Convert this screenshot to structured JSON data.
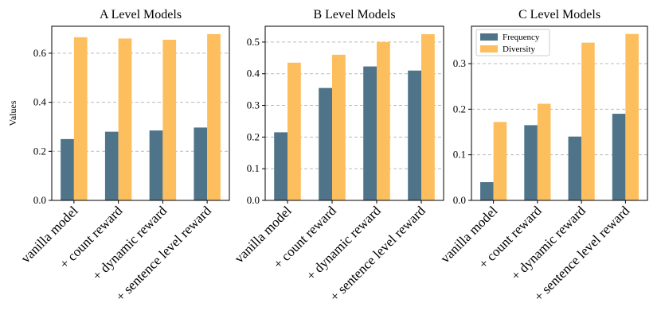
{
  "chart_data": [
    {
      "type": "bar",
      "title": "A Level Models",
      "ylabel": "Values",
      "categories": [
        "vanilla model",
        "+ count reward",
        "+ dynamic reward",
        "+ sentence level reward"
      ],
      "series": [
        {
          "color": "#4f7489",
          "values": [
            0.25,
            0.28,
            0.285,
            0.297
          ]
        },
        {
          "color": "#fdbf5e",
          "values": [
            0.665,
            0.66,
            0.655,
            0.678
          ]
        }
      ],
      "ylim": [
        0,
        0.71
      ],
      "yticks": [
        {
          "value": 0,
          "label": "0.0"
        },
        0.2,
        0.4,
        0.6
      ],
      "grid": true
    },
    {
      "type": "bar",
      "title": "B Level Models",
      "categories": [
        "vanilla model",
        "+ count reward",
        "+ dynamic reward",
        "+ sentence level reward"
      ],
      "series": [
        {
          "color": "#4f7489",
          "values": [
            0.215,
            0.355,
            0.423,
            0.41
          ]
        },
        {
          "color": "#fdbf5e",
          "values": [
            0.435,
            0.46,
            0.5,
            0.525
          ]
        }
      ],
      "ylim": [
        0,
        0.55
      ],
      "yticks": [
        {
          "value": 0,
          "label": "0.0"
        },
        0.1,
        0.2,
        0.3,
        0.4,
        0.5
      ],
      "grid": true
    },
    {
      "type": "bar",
      "title": "C Level Models",
      "categories": [
        "vanilla model",
        "+ count reward",
        "+ dynamic reward",
        "+ sentence level reward"
      ],
      "series": [
        {
          "name": "Frequency",
          "color": "#4f7489",
          "values": [
            0.04,
            0.165,
            0.14,
            0.19
          ]
        },
        {
          "name": "Diversity",
          "color": "#fdbf5e",
          "values": [
            0.172,
            0.212,
            0.346,
            0.365
          ]
        }
      ],
      "ylim": [
        0,
        0.382
      ],
      "yticks": [
        {
          "value": 0,
          "label": "0.0"
        },
        0.1,
        0.2,
        0.3
      ],
      "grid": true,
      "legend": "upper left"
    }
  ]
}
